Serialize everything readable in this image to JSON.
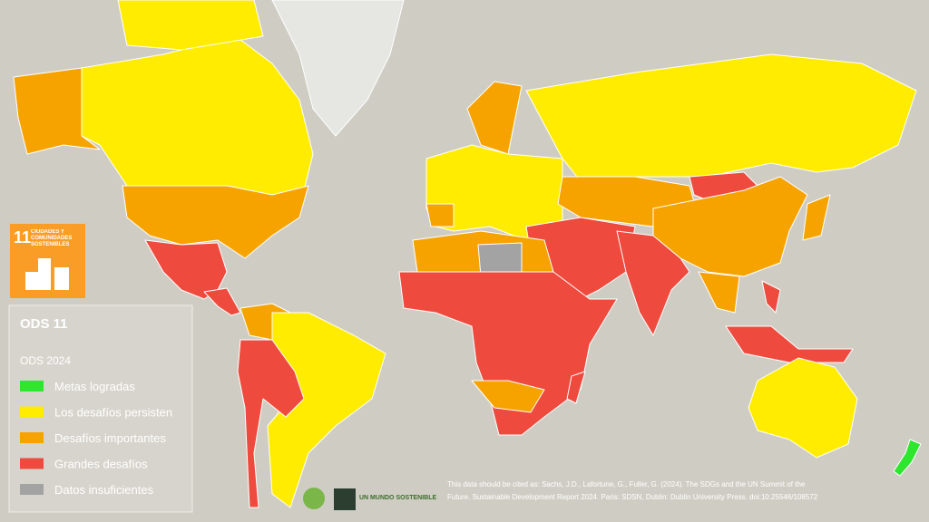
{
  "sdg_icon": {
    "number": "11",
    "label": "CIUDADES Y COMUNIDADES SOSTENIBLES"
  },
  "legend": {
    "title": "ODS 11",
    "subtitle": "ODS 2024",
    "items": [
      {
        "label": "Metas logradas",
        "color": "#2ee62e"
      },
      {
        "label": "Los desafíos persisten",
        "color": "#ffec00"
      },
      {
        "label": "Desafíos importantes",
        "color": "#f6a300"
      },
      {
        "label": "Grandes desafíos",
        "color": "#ee4a3e"
      },
      {
        "label": "Datos insuficientes",
        "color": "#a3a3a3"
      }
    ]
  },
  "logos": {
    "brand": "UN MUNDO SOSTENIBLE"
  },
  "citation": [
    "This data should be cited as:  Sachs, J.D., Lafortune, G., Fuller, G. (2024). The SDGs and the UN Summit of the",
    "Future. Sustainable Development Report 2024. Paris: SDSN, Dublin: Dublin University Press. doi:10.25546/108572"
  ]
}
